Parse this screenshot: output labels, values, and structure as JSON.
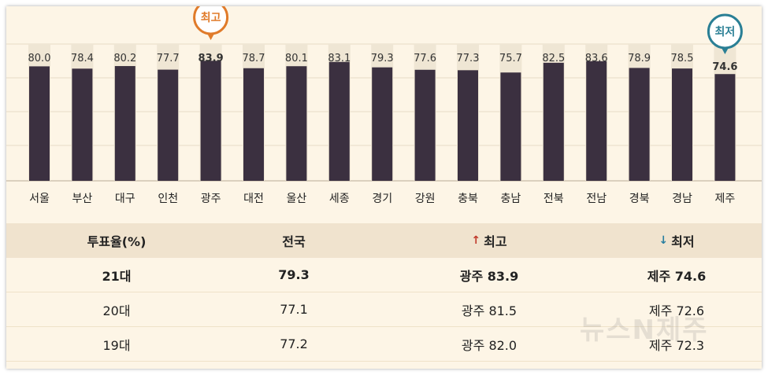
{
  "chart_data": {
    "type": "bar",
    "categories": [
      "서울",
      "부산",
      "대구",
      "인천",
      "광주",
      "대전",
      "울산",
      "세종",
      "경기",
      "강원",
      "충북",
      "충남",
      "전북",
      "전남",
      "경북",
      "경남",
      "제주"
    ],
    "values": [
      80.0,
      78.4,
      80.2,
      77.7,
      83.9,
      78.7,
      80.1,
      83.1,
      79.3,
      77.6,
      77.3,
      75.7,
      82.5,
      83.6,
      78.9,
      78.5,
      74.6
    ],
    "value_labels": [
      "80.0",
      "78.4",
      "80.2",
      "77.7",
      "83.9",
      "78.7",
      "80.1",
      "83.1",
      "79.3",
      "77.6",
      "77.3",
      "75.7",
      "82.5",
      "83.6",
      "78.9",
      "78.5",
      "74.6"
    ],
    "ylim": [
      0,
      100
    ],
    "grid": true,
    "highlights": {
      "max": {
        "index": 4,
        "label": "최고",
        "color": "#e07b2a"
      },
      "min": {
        "index": 16,
        "label": "최저",
        "color": "#2a7f95"
      }
    },
    "colors": {
      "bar": "#3b3040",
      "track": "#efe6d4",
      "background": "#fdf5e6",
      "grid": "#e6dbc6"
    }
  },
  "table": {
    "headers": [
      "투표율(%)",
      "전국",
      "최고",
      "최저"
    ],
    "rows": [
      [
        "21대",
        "79.3",
        "광주 83.9",
        "제주 74.6"
      ],
      [
        "20대",
        "77.1",
        "광주 81.5",
        "제주 72.6"
      ],
      [
        "19대",
        "77.2",
        "광주 82.0",
        "제주 72.3"
      ]
    ]
  },
  "watermark": "뉴스N제주"
}
